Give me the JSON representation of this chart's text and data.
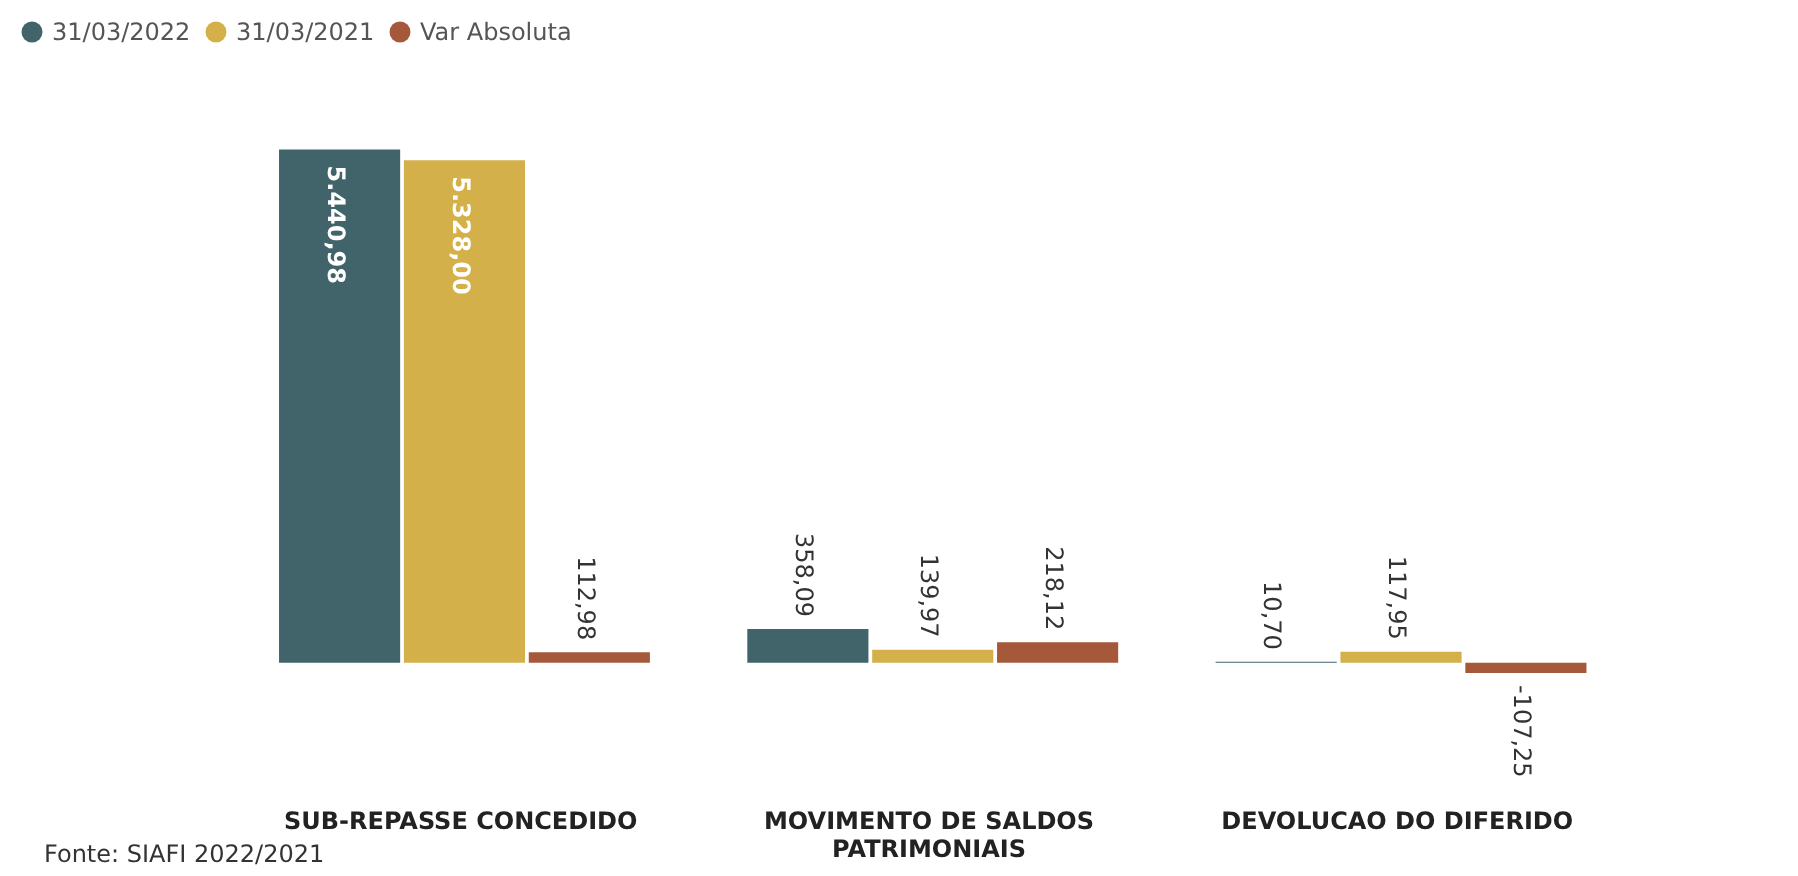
{
  "chart_data": {
    "type": "bar",
    "categories": [
      "SUB-REPASSE CONCEDIDO",
      "MOVIMENTO DE SALDOS PATRIMONIAIS",
      "DEVOLUCAO DO DIFERIDO"
    ],
    "series": [
      {
        "name": "31/03/2022",
        "color": "#41646b",
        "values": [
          5440.98,
          358.09,
          10.7
        ],
        "value_labels": [
          "5.440,98",
          "358,09",
          "10,70"
        ]
      },
      {
        "name": "31/03/2021",
        "color": "#d4b04a",
        "values": [
          5328.0,
          139.97,
          117.95
        ],
        "value_labels": [
          "5.328,00",
          "139,97",
          "117,95"
        ]
      },
      {
        "name": "Var Absoluta",
        "color": "#a5583a",
        "values": [
          112.98,
          218.12,
          -107.25
        ],
        "value_labels": [
          "112,98",
          "218,12",
          "-107,25"
        ]
      }
    ],
    "annotations": [
      "Fonte: SIAFI 2022/2021"
    ],
    "legend": "top left",
    "tick_labels": "x",
    "grid": false
  }
}
